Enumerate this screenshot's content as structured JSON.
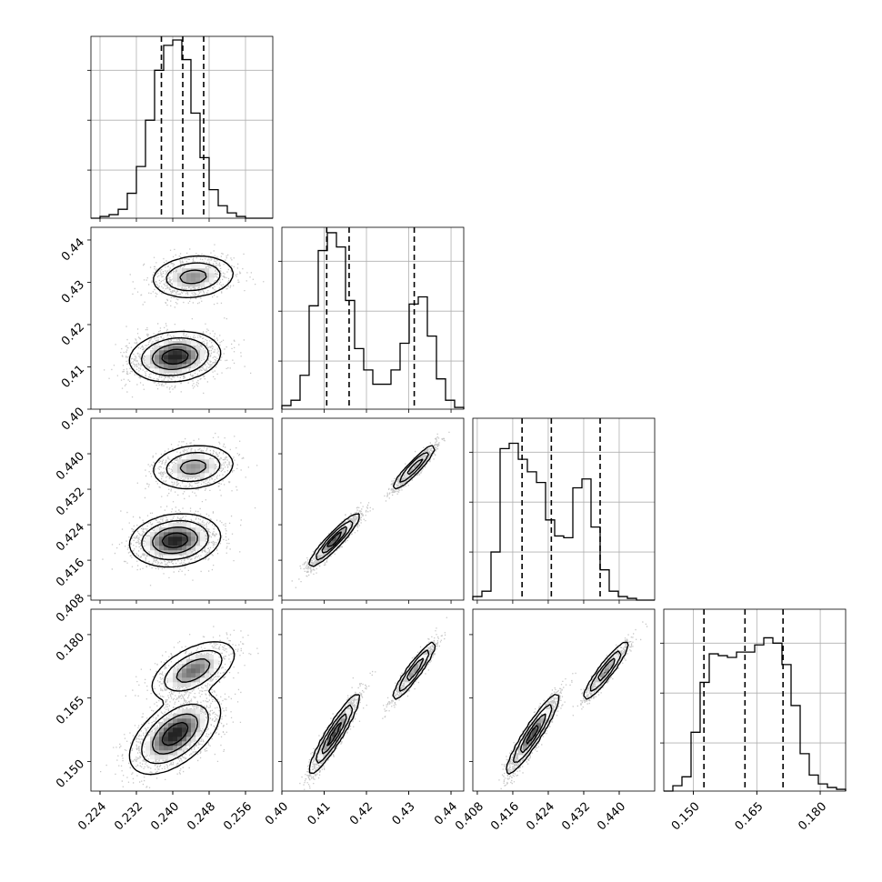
{
  "chart_data": {
    "type": "corner",
    "parameters": 4,
    "title": "",
    "axis_labels": [
      "",
      "",
      "",
      ""
    ],
    "ranges": [
      [
        0.222,
        0.262
      ],
      [
        0.4,
        0.443
      ],
      [
        0.407,
        0.448
      ],
      [
        0.143,
        0.186
      ]
    ],
    "ticks": [
      [
        "0.224",
        "0.232",
        "0.240",
        "0.248",
        "0.256"
      ],
      [
        "0.40",
        "0.41",
        "0.42",
        "0.43",
        "0.44"
      ],
      [
        "0.408",
        "0.416",
        "0.424",
        "0.432",
        "0.440"
      ],
      [
        "0.150",
        "0.165",
        "0.180"
      ]
    ],
    "tick_values": [
      [
        0.224,
        0.232,
        0.24,
        0.248,
        0.256
      ],
      [
        0.4,
        0.41,
        0.42,
        0.43,
        0.44
      ],
      [
        0.408,
        0.416,
        0.424,
        0.432,
        0.44
      ],
      [
        0.15,
        0.165,
        0.18
      ]
    ],
    "quantiles": [
      [
        0.2375,
        0.2422,
        0.2468
      ],
      [
        0.4106,
        0.4159,
        0.4313
      ],
      [
        0.4181,
        0.4247,
        0.4357
      ],
      [
        0.1525,
        0.1622,
        0.1712
      ]
    ],
    "histograms": [
      [
        0,
        0.01,
        0.02,
        0.05,
        0.14,
        0.29,
        0.55,
        0.83,
        0.97,
        1.0,
        0.89,
        0.59,
        0.34,
        0.16,
        0.07,
        0.03,
        0.01,
        0,
        0,
        0
      ],
      [
        0.02,
        0.05,
        0.19,
        0.58,
        0.89,
        0.99,
        0.91,
        0.61,
        0.34,
        0.22,
        0.14,
        0.14,
        0.22,
        0.37,
        0.59,
        0.63,
        0.41,
        0.17,
        0.05,
        0.01
      ],
      [
        0.02,
        0.05,
        0.27,
        0.85,
        0.88,
        0.79,
        0.72,
        0.66,
        0.45,
        0.36,
        0.35,
        0.63,
        0.68,
        0.41,
        0.17,
        0.05,
        0.02,
        0.01,
        0,
        0
      ],
      [
        0,
        0.03,
        0.08,
        0.33,
        0.61,
        0.77,
        0.76,
        0.75,
        0.78,
        0.78,
        0.82,
        0.86,
        0.83,
        0.71,
        0.48,
        0.21,
        0.09,
        0.04,
        0.02,
        0.01
      ]
    ],
    "components": [
      {
        "weight": 0.65,
        "mean": [
          0.2405,
          0.4124,
          0.4205,
          0.1565
        ],
        "sd": [
          0.0042,
          0.0025,
          0.0025,
          0.004
        ]
      },
      {
        "weight": 0.35,
        "mean": [
          0.2445,
          0.4313,
          0.437,
          0.1715
        ],
        "sd": [
          0.004,
          0.0022,
          0.0022,
          0.003
        ]
      }
    ]
  }
}
